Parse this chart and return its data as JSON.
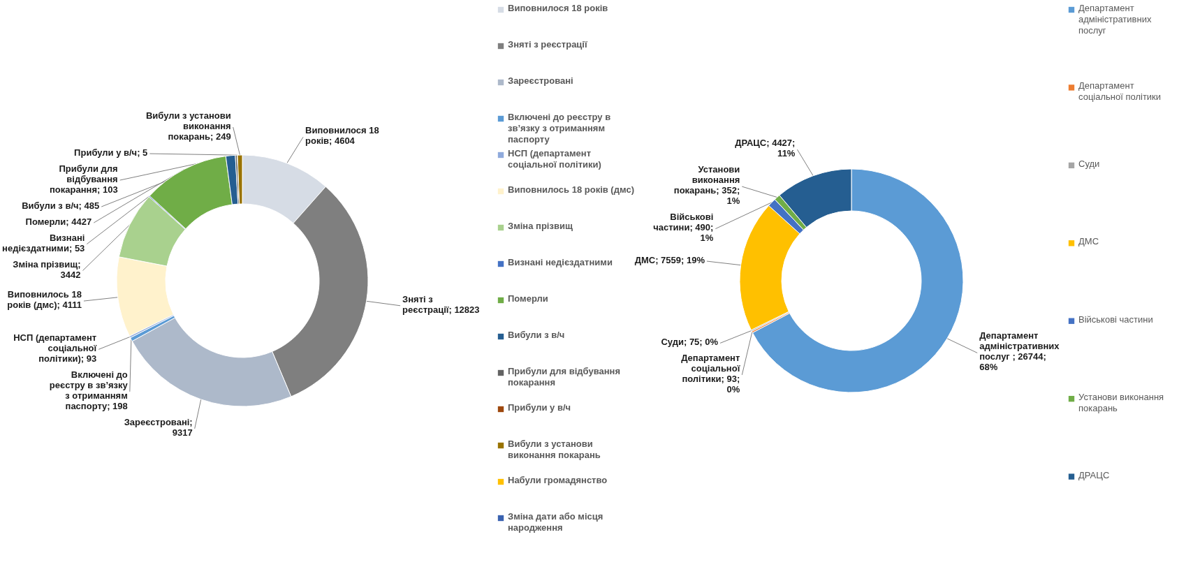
{
  "chart_data": [
    {
      "type": "donut",
      "categories": [
        "Виповнилося 18 років",
        "Зняті з реєстрації",
        "Зареєстровані",
        "Включені до реєстру в зв’язку з отриманням паспорту",
        "НСП (департамент соціальної політики)",
        "Виповнилось 18 років (дмс)",
        "Зміна прізвищ",
        "Визнані недієздатними",
        "Померли",
        "Вибули з в/ч",
        "Прибули для відбування покарання",
        "Прибули у в/ч",
        "Вибули з установи виконання покарань",
        "Набули громадянство",
        "Зміна дати або місця народження"
      ],
      "values": [
        4604,
        12823,
        9317,
        198,
        93,
        4111,
        3442,
        53,
        4427,
        485,
        103,
        5,
        249,
        null,
        null
      ],
      "colors": [
        "#d6dce5",
        "#7f7f7f",
        "#adb9ca",
        "#5b9bd5",
        "#8faadc",
        "#fff2cc",
        "#a9d18e",
        "#4472c4",
        "#70ad47",
        "#255e91",
        "#636363",
        "#9e480e",
        "#997300",
        "#ffc000",
        "#3a62b0"
      ],
      "value_labels": [
        "Виповнилося 18 років; 4604",
        "Зняті з реєстрації; 12823",
        "Зареєстровані; 9317",
        "Включені до реєстру в зв’язку з отриманням паспорту; 198",
        "НСП (департамент соціальної політики); 93",
        "Виповнилось 18 років (дмс); 4111",
        "Зміна прізвищ; 3442",
        "Визнані недієздатними; 53",
        "Померли; 4427",
        "Вибули з в/ч; 485",
        "Прибули для відбування покарання; 103",
        "Прибули у в/ч; 5",
        "Вибули з установи виконання покарань; 249",
        null,
        null
      ],
      "legend": "right"
    },
    {
      "type": "donut",
      "categories": [
        "Департамент адміністративних послуг",
        "Департамент соціальної політики",
        "Суди",
        "ДМС",
        "Військові частини",
        "Установи виконання покарань",
        "ДРАЦС"
      ],
      "values": [
        26744,
        93,
        75,
        7559,
        490,
        352,
        4427
      ],
      "colors": [
        "#5b9bd5",
        "#ed7d31",
        "#a5a5a5",
        "#ffc000",
        "#4472c4",
        "#70ad47",
        "#255e91"
      ],
      "value_labels": [
        "Департамент адміністративних послуг ; 26744; 68%",
        "Департамент соціальної політики; 93; 0%",
        "Суди; 75; 0%",
        "ДМС; 7559; 19%",
        "Військові частини; 490; 1%",
        "Установи виконання покарань; 352; 1%",
        "ДРАЦС; 4427; 11%"
      ],
      "legend": "right"
    }
  ]
}
